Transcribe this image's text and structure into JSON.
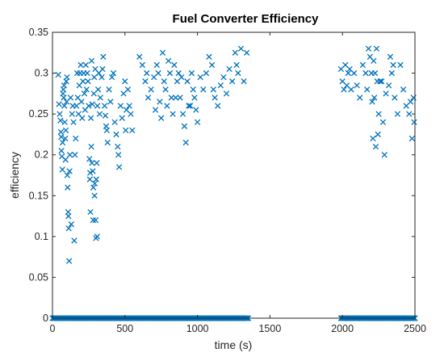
{
  "chart_data": {
    "type": "scatter",
    "title": "Fuel Converter Efficiency",
    "xlabel": "time (s)",
    "ylabel": "efficiency",
    "xlim": [
      0,
      2500
    ],
    "ylim": [
      0,
      0.35
    ],
    "xticks": [
      0,
      500,
      1000,
      1500,
      2000,
      2500
    ],
    "xtick_labels": [
      "0",
      "500",
      "1000",
      "1500",
      "2000",
      "2500"
    ],
    "yticks": [
      0,
      0.05,
      0.1,
      0.15,
      0.2,
      0.25,
      0.3,
      0.35
    ],
    "ytick_labels": [
      "0",
      "0.05",
      "0.1",
      "0.15",
      "0.2",
      "0.25",
      "0.3",
      "0.35"
    ],
    "grid": false,
    "legend": "none",
    "marker": "x",
    "color": "#0072BD",
    "zero_runs": [
      [
        0,
        1350
      ],
      [
        1990,
        2500
      ]
    ],
    "points": [
      [
        40,
        0.298
      ],
      [
        45,
        0.262
      ],
      [
        50,
        0.25
      ],
      [
        55,
        0.242
      ],
      [
        58,
        0.228
      ],
      [
        60,
        0.222
      ],
      [
        62,
        0.205
      ],
      [
        65,
        0.198
      ],
      [
        68,
        0.182
      ],
      [
        70,
        0.215
      ],
      [
        72,
        0.275
      ],
      [
        75,
        0.28
      ],
      [
        78,
        0.27
      ],
      [
        80,
        0.285
      ],
      [
        82,
        0.26
      ],
      [
        85,
        0.24
      ],
      [
        88,
        0.22
      ],
      [
        90,
        0.194
      ],
      [
        92,
        0.23
      ],
      [
        95,
        0.29
      ],
      [
        98,
        0.265
      ],
      [
        100,
        0.295
      ],
      [
        102,
        0.175
      ],
      [
        105,
        0.16
      ],
      [
        108,
        0.13
      ],
      [
        110,
        0.125
      ],
      [
        112,
        0.11
      ],
      [
        115,
        0.07
      ],
      [
        118,
        0.18
      ],
      [
        120,
        0.2
      ],
      [
        125,
        0.27
      ],
      [
        130,
        0.115
      ],
      [
        135,
        0.25
      ],
      [
        140,
        0.26
      ],
      [
        145,
        0.24
      ],
      [
        150,
        0.095
      ],
      [
        155,
        0.2
      ],
      [
        160,
        0.22
      ],
      [
        165,
        0.26
      ],
      [
        170,
        0.3
      ],
      [
        175,
        0.27
      ],
      [
        180,
        0.25
      ],
      [
        185,
        0.285
      ],
      [
        190,
        0.3
      ],
      [
        195,
        0.31
      ],
      [
        200,
        0.265
      ],
      [
        205,
        0.245
      ],
      [
        210,
        0.29
      ],
      [
        215,
        0.3
      ],
      [
        220,
        0.275
      ],
      [
        225,
        0.255
      ],
      [
        230,
        0.31
      ],
      [
        235,
        0.28
      ],
      [
        240,
        0.3
      ],
      [
        245,
        0.29
      ],
      [
        250,
        0.26
      ],
      [
        255,
        0.195
      ],
      [
        258,
        0.17
      ],
      [
        260,
        0.178
      ],
      [
        262,
        0.13
      ],
      [
        265,
        0.245
      ],
      [
        268,
        0.21
      ],
      [
        270,
        0.315
      ],
      [
        272,
        0.19
      ],
      [
        275,
        0.262
      ],
      [
        278,
        0.18
      ],
      [
        280,
        0.12
      ],
      [
        282,
        0.16
      ],
      [
        285,
        0.275
      ],
      [
        288,
        0.295
      ],
      [
        290,
        0.15
      ],
      [
        292,
        0.165
      ],
      [
        295,
        0.305
      ],
      [
        298,
        0.12
      ],
      [
        300,
        0.098
      ],
      [
        302,
        0.17
      ],
      [
        305,
        0.19
      ],
      [
        308,
        0.1
      ],
      [
        310,
        0.26
      ],
      [
        315,
        0.28
      ],
      [
        320,
        0.3
      ],
      [
        325,
        0.25
      ],
      [
        330,
        0.27
      ],
      [
        340,
        0.295
      ],
      [
        345,
        0.305
      ],
      [
        350,
        0.32
      ],
      [
        360,
        0.26
      ],
      [
        365,
        0.248
      ],
      [
        370,
        0.235
      ],
      [
        375,
        0.23
      ],
      [
        380,
        0.215
      ],
      [
        390,
        0.28
      ],
      [
        400,
        0.265
      ],
      [
        410,
        0.295
      ],
      [
        420,
        0.3
      ],
      [
        430,
        0.24
      ],
      [
        440,
        0.225
      ],
      [
        450,
        0.21
      ],
      [
        455,
        0.2
      ],
      [
        460,
        0.185
      ],
      [
        470,
        0.26
      ],
      [
        480,
        0.245
      ],
      [
        490,
        0.275
      ],
      [
        500,
        0.29
      ],
      [
        505,
        0.23
      ],
      [
        510,
        0.255
      ],
      [
        520,
        0.28
      ],
      [
        530,
        0.26
      ],
      [
        540,
        0.25
      ],
      [
        550,
        0.23
      ],
      [
        600,
        0.32
      ],
      [
        620,
        0.31
      ],
      [
        640,
        0.29
      ],
      [
        650,
        0.3
      ],
      [
        660,
        0.27
      ],
      [
        680,
        0.28
      ],
      [
        700,
        0.295
      ],
      [
        710,
        0.255
      ],
      [
        720,
        0.31
      ],
      [
        730,
        0.3
      ],
      [
        740,
        0.265
      ],
      [
        750,
        0.245
      ],
      [
        760,
        0.325
      ],
      [
        770,
        0.29
      ],
      [
        780,
        0.28
      ],
      [
        790,
        0.26
      ],
      [
        800,
        0.315
      ],
      [
        810,
        0.3
      ],
      [
        820,
        0.27
      ],
      [
        830,
        0.25
      ],
      [
        840,
        0.31
      ],
      [
        850,
        0.27
      ],
      [
        860,
        0.29
      ],
      [
        870,
        0.3
      ],
      [
        880,
        0.27
      ],
      [
        890,
        0.295
      ],
      [
        900,
        0.25
      ],
      [
        910,
        0.235
      ],
      [
        920,
        0.215
      ],
      [
        930,
        0.29
      ],
      [
        940,
        0.26
      ],
      [
        950,
        0.26
      ],
      [
        960,
        0.3
      ],
      [
        970,
        0.28
      ],
      [
        980,
        0.27
      ],
      [
        990,
        0.255
      ],
      [
        1000,
        0.24
      ],
      [
        1020,
        0.295
      ],
      [
        1040,
        0.28
      ],
      [
        1060,
        0.3
      ],
      [
        1080,
        0.32
      ],
      [
        1100,
        0.31
      ],
      [
        1110,
        0.28
      ],
      [
        1120,
        0.27
      ],
      [
        1140,
        0.26
      ],
      [
        1160,
        0.285
      ],
      [
        1180,
        0.295
      ],
      [
        1200,
        0.275
      ],
      [
        1220,
        0.305
      ],
      [
        1240,
        0.29
      ],
      [
        1260,
        0.325
      ],
      [
        1270,
        0.31
      ],
      [
        1280,
        0.3
      ],
      [
        1300,
        0.33
      ],
      [
        1320,
        0.29
      ],
      [
        1340,
        0.325
      ],
      [
        1990,
        0.305
      ],
      [
        2000,
        0.29
      ],
      [
        2010,
        0.28
      ],
      [
        2020,
        0.31
      ],
      [
        2030,
        0.285
      ],
      [
        2040,
        0.3
      ],
      [
        2050,
        0.305
      ],
      [
        2060,
        0.28
      ],
      [
        2080,
        0.3
      ],
      [
        2100,
        0.285
      ],
      [
        2120,
        0.27
      ],
      [
        2140,
        0.31
      ],
      [
        2160,
        0.3
      ],
      [
        2170,
        0.28
      ],
      [
        2180,
        0.33
      ],
      [
        2190,
        0.32
      ],
      [
        2200,
        0.3
      ],
      [
        2205,
        0.265
      ],
      [
        2210,
        0.22
      ],
      [
        2215,
        0.315
      ],
      [
        2220,
        0.27
      ],
      [
        2225,
        0.3
      ],
      [
        2230,
        0.21
      ],
      [
        2235,
        0.33
      ],
      [
        2240,
        0.29
      ],
      [
        2245,
        0.225
      ],
      [
        2250,
        0.25
      ],
      [
        2260,
        0.29
      ],
      [
        2270,
        0.29
      ],
      [
        2280,
        0.24
      ],
      [
        2290,
        0.2
      ],
      [
        2300,
        0.275
      ],
      [
        2320,
        0.285
      ],
      [
        2330,
        0.32
      ],
      [
        2340,
        0.3
      ],
      [
        2350,
        0.31
      ],
      [
        2360,
        0.27
      ],
      [
        2380,
        0.25
      ],
      [
        2400,
        0.31
      ],
      [
        2420,
        0.28
      ],
      [
        2440,
        0.26
      ],
      [
        2460,
        0.25
      ],
      [
        2470,
        0.265
      ],
      [
        2480,
        0.22
      ],
      [
        2490,
        0.27
      ],
      [
        2495,
        0.24
      ]
    ]
  }
}
